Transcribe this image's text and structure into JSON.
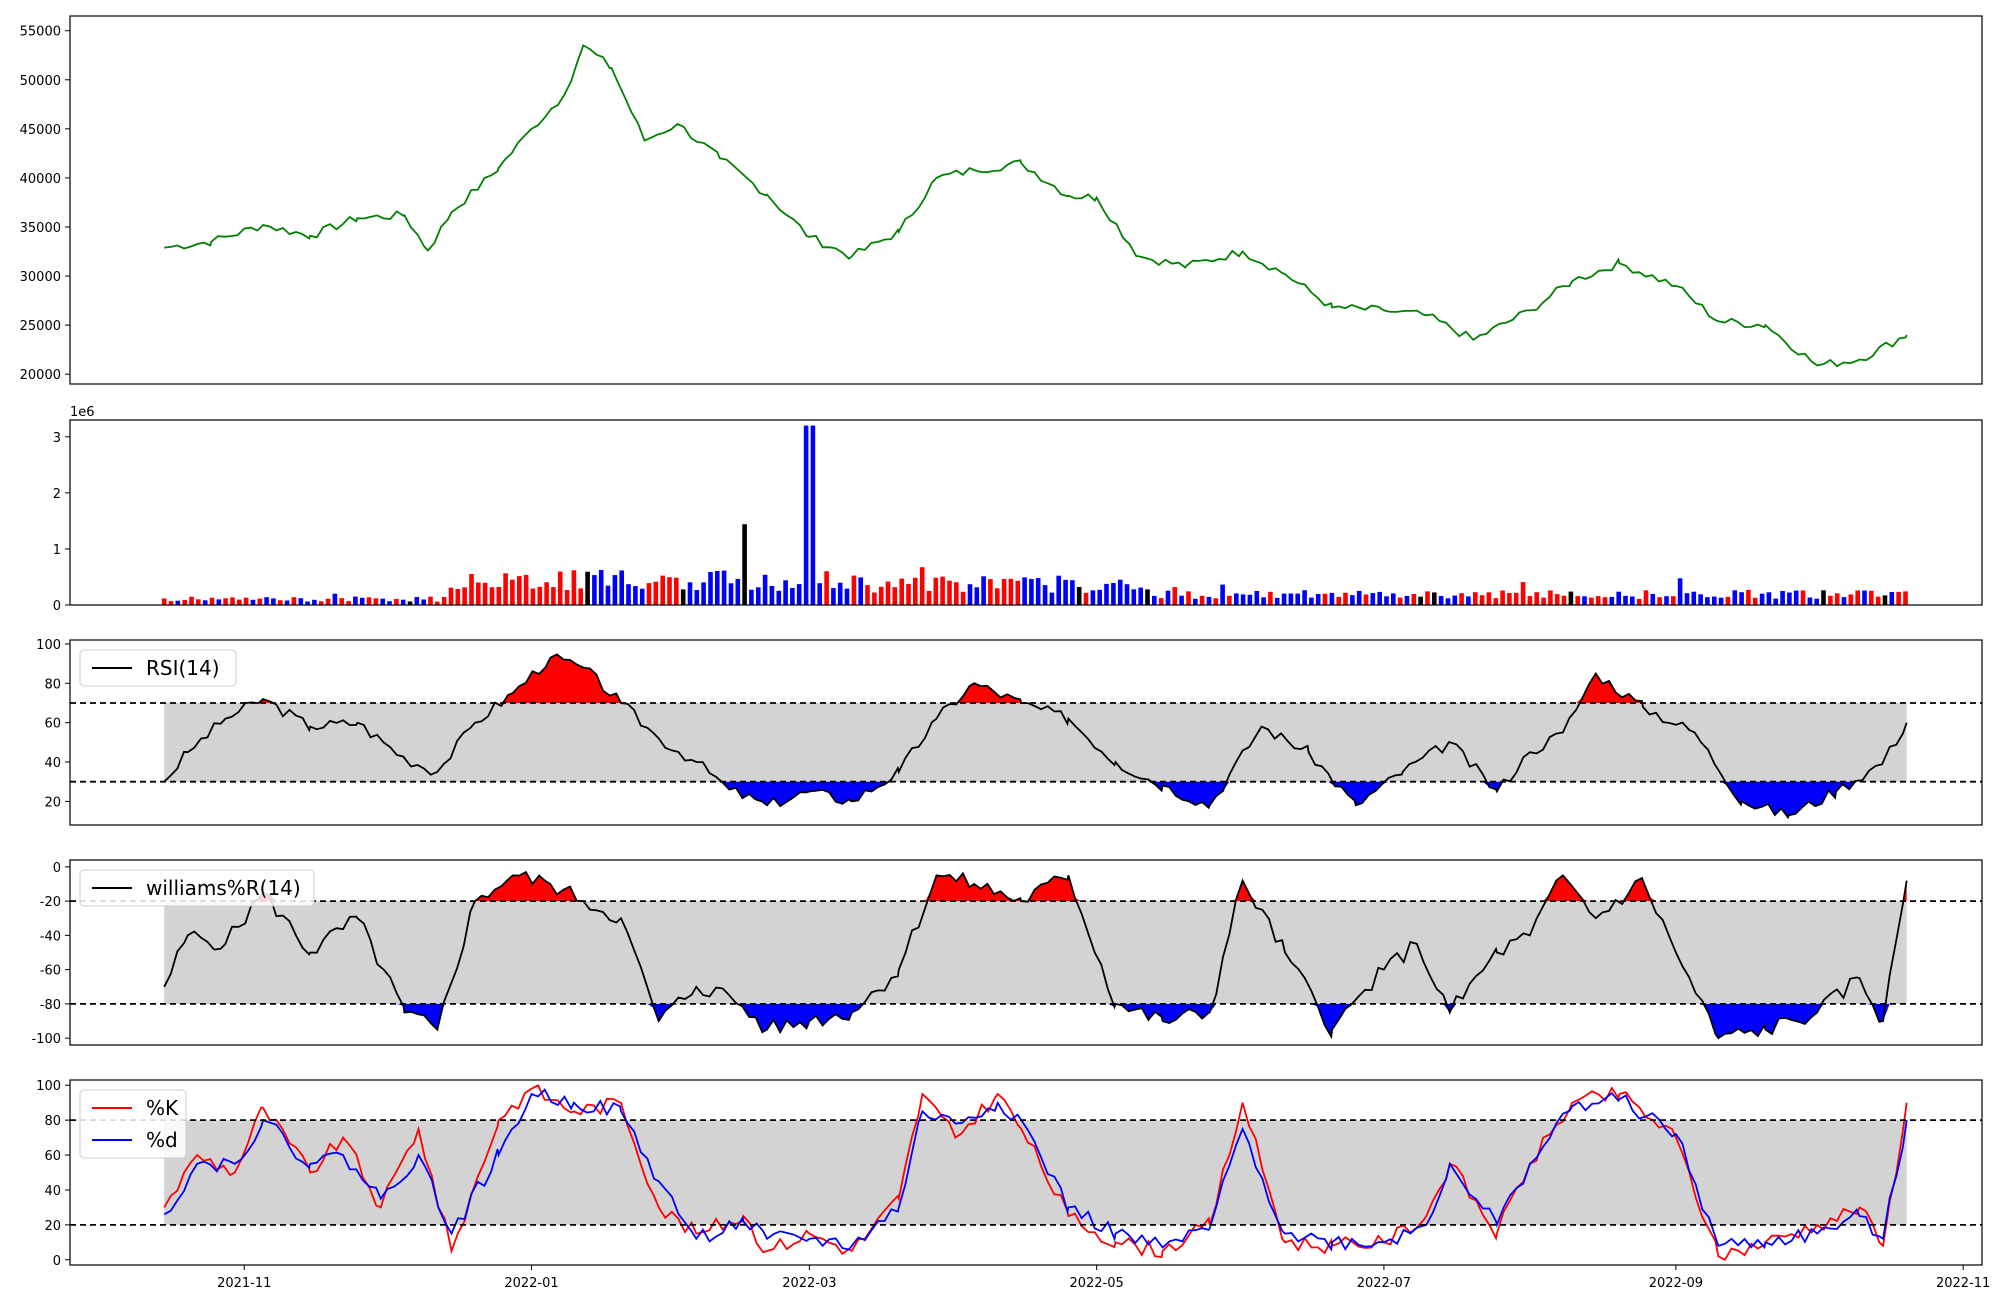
{
  "chart_data": [
    {
      "id": "price",
      "type": "line",
      "series": [
        {
          "color": "#008000",
          "x": [
            "2021-10-15",
            "2021-10-25",
            "2021-11-05",
            "2021-11-15",
            "2021-11-25",
            "2021-12-05",
            "2021-12-10",
            "2021-12-15",
            "2021-12-25",
            "2022-01-01",
            "2022-01-08",
            "2022-01-12",
            "2022-01-18",
            "2022-01-25",
            "2022-02-01",
            "2022-02-10",
            "2022-02-20",
            "2022-03-01",
            "2022-03-10",
            "2022-03-20",
            "2022-03-28",
            "2022-04-05",
            "2022-04-15",
            "2022-04-25",
            "2022-05-01",
            "2022-05-10",
            "2022-05-20",
            "2022-06-01",
            "2022-06-10",
            "2022-06-20",
            "2022-07-01",
            "2022-07-10",
            "2022-07-20",
            "2022-08-01",
            "2022-08-10",
            "2022-08-20",
            "2022-09-01",
            "2022-09-10",
            "2022-09-20",
            "2022-10-01",
            "2022-10-10",
            "2022-10-20"
          ],
          "y": [
            32900,
            33500,
            35200,
            34100,
            35900,
            36200,
            32600,
            36500,
            41000,
            45000,
            48500,
            53500,
            51200,
            43800,
            45500,
            42000,
            38300,
            34000,
            32000,
            34500,
            40000,
            40800,
            41500,
            38200,
            38000,
            32000,
            31000,
            32500,
            30200,
            26800,
            26500,
            26000,
            23500,
            26500,
            29500,
            31300,
            29000,
            25400,
            25000,
            20900,
            21500,
            24000
          ]
        }
      ]
    },
    {
      "id": "volume",
      "type": "bar",
      "offset_label": "1e6",
      "ylim": [
        0,
        3.3
      ],
      "yticks": [
        0,
        1,
        2,
        3
      ],
      "colors": {
        "up": "#ff0000",
        "down": "#0000ff",
        "flat": "#000000"
      },
      "spike": {
        "x": "2022-03-01",
        "value": 3.2
      }
    },
    {
      "id": "rsi",
      "type": "line",
      "legend": [
        "RSI(14)"
      ],
      "ylim": [
        8,
        102
      ],
      "yticks": [
        20,
        40,
        60,
        80,
        100
      ],
      "upper": 70,
      "lower": 30,
      "colors": {
        "line": "#000000",
        "above": "#ff0000",
        "below": "#0000ff",
        "band": "#d3d3d3"
      },
      "series": [
        {
          "name": "RSI(14)",
          "x": [
            "2021-10-15",
            "2021-10-20",
            "2021-10-28",
            "2021-11-05",
            "2021-11-15",
            "2021-11-25",
            "2021-12-05",
            "2021-12-12",
            "2021-12-20",
            "2021-12-28",
            "2022-01-05",
            "2022-01-12",
            "2022-01-20",
            "2022-01-28",
            "2022-02-05",
            "2022-02-12",
            "2022-02-20",
            "2022-03-01",
            "2022-03-10",
            "2022-03-20",
            "2022-03-28",
            "2022-04-05",
            "2022-04-15",
            "2022-04-25",
            "2022-05-05",
            "2022-05-15",
            "2022-05-25",
            "2022-06-05",
            "2022-06-15",
            "2022-06-25",
            "2022-07-05",
            "2022-07-15",
            "2022-07-25",
            "2022-08-01",
            "2022-08-08",
            "2022-08-15",
            "2022-08-25",
            "2022-09-05",
            "2022-09-15",
            "2022-09-25",
            "2022-10-05",
            "2022-10-15",
            "2022-10-20"
          ],
          "y": [
            30,
            45,
            62,
            72,
            58,
            60,
            42,
            35,
            60,
            75,
            93,
            88,
            70,
            52,
            40,
            26,
            18,
            25,
            20,
            35,
            62,
            80,
            70,
            62,
            40,
            28,
            18,
            58,
            45,
            18,
            35,
            50,
            25,
            45,
            55,
            85,
            68,
            55,
            20,
            13,
            25,
            40,
            60
          ]
        }
      ]
    },
    {
      "id": "williams",
      "type": "line",
      "legend": [
        "williams%R(14)"
      ],
      "ylim": [
        -104,
        4
      ],
      "yticks": [
        0,
        -20,
        -40,
        -60,
        -80,
        -100
      ],
      "upper": -20,
      "lower": -80,
      "colors": {
        "line": "#000000",
        "above": "#ff0000",
        "below": "#0000ff",
        "band": "#d3d3d3"
      },
      "series": [
        {
          "name": "williams%R(14)",
          "x": [
            "2021-10-15",
            "2021-10-20",
            "2021-10-28",
            "2021-11-05",
            "2021-11-15",
            "2021-11-25",
            "2021-12-05",
            "2021-12-12",
            "2021-12-20",
            "2021-12-28",
            "2022-01-05",
            "2022-01-12",
            "2022-01-20",
            "2022-01-28",
            "2022-02-05",
            "2022-02-12",
            "2022-02-20",
            "2022-03-01",
            "2022-03-10",
            "2022-03-20",
            "2022-03-28",
            "2022-04-05",
            "2022-04-15",
            "2022-04-25",
            "2022-05-05",
            "2022-05-15",
            "2022-05-25",
            "2022-06-01",
            "2022-06-10",
            "2022-06-20",
            "2022-07-01",
            "2022-07-08",
            "2022-07-15",
            "2022-07-25",
            "2022-08-01",
            "2022-08-08",
            "2022-08-15",
            "2022-08-25",
            "2022-09-01",
            "2022-09-10",
            "2022-09-20",
            "2022-10-01",
            "2022-10-10",
            "2022-10-15",
            "2022-10-20"
          ],
          "y": [
            -70,
            -40,
            -45,
            -15,
            -50,
            -30,
            -85,
            -95,
            -20,
            -5,
            -10,
            -20,
            -30,
            -90,
            -70,
            -75,
            -95,
            -90,
            -85,
            -60,
            -5,
            -10,
            -20,
            -5,
            -80,
            -90,
            -85,
            -8,
            -50,
            -95,
            -60,
            -45,
            -85,
            -50,
            -40,
            -5,
            -30,
            -8,
            -50,
            -100,
            -95,
            -85,
            -65,
            -90,
            -8
          ]
        }
      ]
    },
    {
      "id": "stochastic",
      "type": "line",
      "legend": [
        "%K",
        "%d"
      ],
      "ylim": [
        -3,
        103
      ],
      "yticks": [
        0,
        20,
        40,
        60,
        80,
        100
      ],
      "upper": 80,
      "lower": 20,
      "colors": {
        "band": "#d3d3d3"
      },
      "series": [
        {
          "name": "%K",
          "color": "#ff0000",
          "x": [
            "2021-10-15",
            "2021-10-22",
            "2021-10-30",
            "2021-11-05",
            "2021-11-15",
            "2021-11-22",
            "2021-11-30",
            "2021-12-08",
            "2021-12-15",
            "2021-12-25",
            "2022-01-01",
            "2022-01-10",
            "2022-01-20",
            "2022-01-28",
            "2022-02-05",
            "2022-02-15",
            "2022-02-20",
            "2022-03-01",
            "2022-03-10",
            "2022-03-20",
            "2022-03-25",
            "2022-04-01",
            "2022-04-10",
            "2022-04-15",
            "2022-04-25",
            "2022-05-05",
            "2022-05-15",
            "2022-05-25",
            "2022-06-01",
            "2022-06-10",
            "2022-06-20",
            "2022-07-01",
            "2022-07-10",
            "2022-07-15",
            "2022-07-25",
            "2022-08-01",
            "2022-08-10",
            "2022-08-20",
            "2022-09-01",
            "2022-09-10",
            "2022-09-20",
            "2022-10-01",
            "2022-10-10",
            "2022-10-15",
            "2022-10-20"
          ],
          "y": [
            30,
            60,
            50,
            87,
            50,
            70,
            30,
            75,
            5,
            80,
            98,
            85,
            90,
            30,
            15,
            25,
            5,
            15,
            5,
            35,
            95,
            70,
            95,
            75,
            25,
            10,
            5,
            20,
            90,
            10,
            8,
            10,
            25,
            55,
            15,
            55,
            90,
            95,
            70,
            2,
            10,
            20,
            30,
            8,
            90
          ]
        },
        {
          "name": "%d",
          "color": "#0000ff",
          "x": [
            "2021-10-15",
            "2021-10-22",
            "2021-10-30",
            "2021-11-05",
            "2021-11-15",
            "2021-11-22",
            "2021-11-30",
            "2021-12-08",
            "2021-12-15",
            "2021-12-25",
            "2022-01-01",
            "2022-01-10",
            "2022-01-20",
            "2022-01-28",
            "2022-02-05",
            "2022-02-15",
            "2022-02-20",
            "2022-03-01",
            "2022-03-10",
            "2022-03-20",
            "2022-03-25",
            "2022-04-01",
            "2022-04-10",
            "2022-04-15",
            "2022-04-25",
            "2022-05-05",
            "2022-05-15",
            "2022-05-25",
            "2022-06-01",
            "2022-06-10",
            "2022-06-20",
            "2022-07-01",
            "2022-07-10",
            "2022-07-15",
            "2022-07-25",
            "2022-08-01",
            "2022-08-10",
            "2022-08-20",
            "2022-09-01",
            "2022-09-10",
            "2022-09-20",
            "2022-10-01",
            "2022-10-10",
            "2022-10-15",
            "2022-10-20"
          ],
          "y": [
            26,
            55,
            55,
            80,
            55,
            60,
            35,
            60,
            15,
            60,
            95,
            90,
            85,
            45,
            12,
            22,
            12,
            12,
            8,
            30,
            85,
            78,
            90,
            80,
            30,
            15,
            7,
            18,
            75,
            15,
            10,
            10,
            20,
            55,
            20,
            55,
            88,
            92,
            72,
            8,
            10,
            15,
            25,
            12,
            80
          ]
        }
      ]
    }
  ],
  "price_axis": {
    "yticks": [
      20000,
      25000,
      30000,
      35000,
      40000,
      45000,
      50000,
      55000
    ],
    "ylim": [
      19000,
      56500
    ]
  },
  "x_axis": {
    "range": [
      "2021-09-25",
      "2022-11-05"
    ],
    "ticks": [
      "2021-11",
      "2022-01",
      "2022-03",
      "2022-05",
      "2022-07",
      "2022-09",
      "2022-11"
    ]
  }
}
